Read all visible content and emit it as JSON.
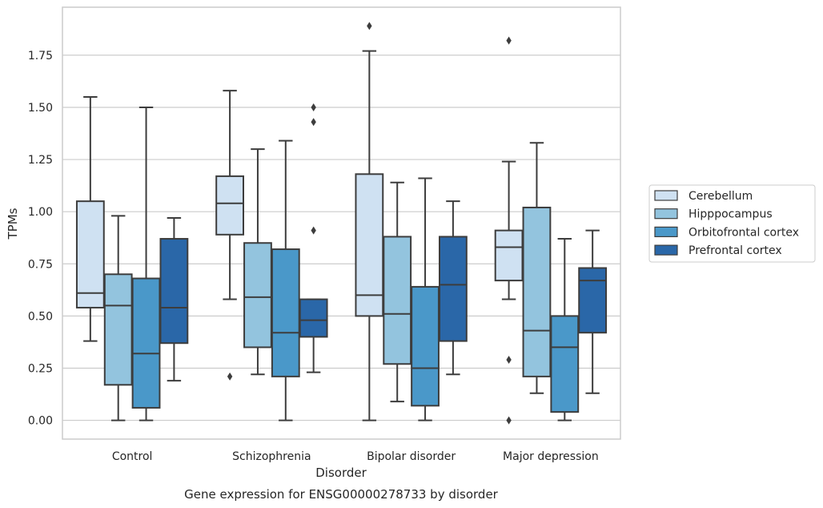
{
  "chart_data": {
    "type": "boxplot",
    "caption": "Gene expression for ENSG00000278733 by disorder",
    "xlabel": "Disorder",
    "ylabel": "TPMs",
    "ylim": [
      -0.09,
      1.98
    ],
    "yticks": [
      0.0,
      0.25,
      0.5,
      0.75,
      1.0,
      1.25,
      1.5,
      1.75
    ],
    "ytick_labels": [
      "0.00",
      "0.25",
      "0.50",
      "0.75",
      "1.00",
      "1.25",
      "1.50",
      "1.75"
    ],
    "grid": "horizontal",
    "legend_position": "right",
    "categories": [
      "Control",
      "Schizophrenia",
      "Bipolar disorder",
      "Major depression"
    ],
    "series": [
      {
        "name": "Cerebellum",
        "color": "#cfe1f2",
        "boxes": [
          {
            "whisker_low": 0.38,
            "q1": 0.54,
            "median": 0.61,
            "q3": 1.05,
            "whisker_high": 1.55,
            "outliers": []
          },
          {
            "whisker_low": 0.58,
            "q1": 0.89,
            "median": 1.04,
            "q3": 1.17,
            "whisker_high": 1.58,
            "outliers": [
              0.21
            ]
          },
          {
            "whisker_low": 0.0,
            "q1": 0.5,
            "median": 0.6,
            "q3": 1.18,
            "whisker_high": 1.77,
            "outliers": [
              1.89
            ]
          },
          {
            "whisker_low": 0.58,
            "q1": 0.67,
            "median": 0.83,
            "q3": 0.91,
            "whisker_high": 1.24,
            "outliers": [
              0.0,
              0.29,
              1.82
            ]
          }
        ]
      },
      {
        "name": "Hipppocampus",
        "color": "#93c4de",
        "boxes": [
          {
            "whisker_low": 0.0,
            "q1": 0.17,
            "median": 0.55,
            "q3": 0.7,
            "whisker_high": 0.98,
            "outliers": []
          },
          {
            "whisker_low": 0.22,
            "q1": 0.35,
            "median": 0.59,
            "q3": 0.85,
            "whisker_high": 1.3,
            "outliers": []
          },
          {
            "whisker_low": 0.09,
            "q1": 0.27,
            "median": 0.51,
            "q3": 0.88,
            "whisker_high": 1.14,
            "outliers": []
          },
          {
            "whisker_low": 0.13,
            "q1": 0.21,
            "median": 0.43,
            "q3": 1.02,
            "whisker_high": 1.33,
            "outliers": []
          }
        ]
      },
      {
        "name": "Orbitofrontal cortex",
        "color": "#4a98c9",
        "boxes": [
          {
            "whisker_low": 0.0,
            "q1": 0.06,
            "median": 0.32,
            "q3": 0.68,
            "whisker_high": 1.5,
            "outliers": []
          },
          {
            "whisker_low": 0.0,
            "q1": 0.21,
            "median": 0.42,
            "q3": 0.82,
            "whisker_high": 1.34,
            "outliers": []
          },
          {
            "whisker_low": 0.0,
            "q1": 0.07,
            "median": 0.25,
            "q3": 0.64,
            "whisker_high": 1.16,
            "outliers": []
          },
          {
            "whisker_low": 0.0,
            "q1": 0.04,
            "median": 0.35,
            "q3": 0.5,
            "whisker_high": 0.87,
            "outliers": []
          }
        ]
      },
      {
        "name": "Prefrontal cortex",
        "color": "#2a67a8",
        "boxes": [
          {
            "whisker_low": 0.19,
            "q1": 0.37,
            "median": 0.54,
            "q3": 0.87,
            "whisker_high": 0.97,
            "outliers": []
          },
          {
            "whisker_low": 0.23,
            "q1": 0.4,
            "median": 0.48,
            "q3": 0.58,
            "whisker_high": 0.58,
            "outliers": [
              0.91,
              1.43,
              1.5
            ]
          },
          {
            "whisker_low": 0.22,
            "q1": 0.38,
            "median": 0.65,
            "q3": 0.88,
            "whisker_high": 1.05,
            "outliers": []
          },
          {
            "whisker_low": 0.13,
            "q1": 0.42,
            "median": 0.67,
            "q3": 0.73,
            "whisker_high": 0.91,
            "outliers": []
          }
        ]
      }
    ]
  }
}
